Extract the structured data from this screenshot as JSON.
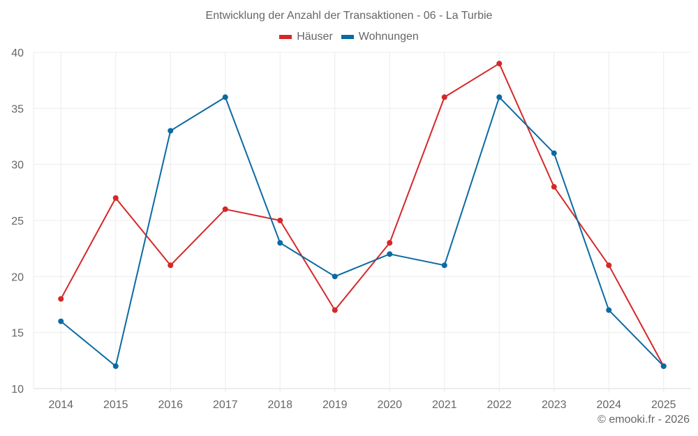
{
  "chart": {
    "title": "Entwicklung der Anzahl der Transaktionen - 06 - La Turbie",
    "credit": "© emooki.fr - 2026"
  },
  "legend": [
    {
      "label": "Häuser",
      "color": "#d62728"
    },
    {
      "label": "Wohnungen",
      "color": "#0b6aa2"
    }
  ],
  "chart_data": {
    "type": "line",
    "title": "Entwicklung der Anzahl der Transaktionen - 06 - La Turbie",
    "xlabel": "",
    "ylabel": "",
    "categories": [
      "2014",
      "2015",
      "2016",
      "2017",
      "2018",
      "2019",
      "2020",
      "2021",
      "2022",
      "2023",
      "2024",
      "2025"
    ],
    "series": [
      {
        "name": "Häuser",
        "color": "#d62728",
        "values": [
          18,
          27,
          21,
          26,
          25,
          17,
          23,
          36,
          39,
          28,
          21,
          12
        ]
      },
      {
        "name": "Wohnungen",
        "color": "#0b6aa2",
        "values": [
          16,
          12,
          33,
          36,
          23,
          20,
          22,
          21,
          36,
          31,
          17,
          12
        ]
      }
    ],
    "ylim": [
      10,
      40
    ],
    "yticks": [
      10,
      15,
      20,
      25,
      30,
      35,
      40
    ],
    "grid": true,
    "legend_position": "top"
  }
}
